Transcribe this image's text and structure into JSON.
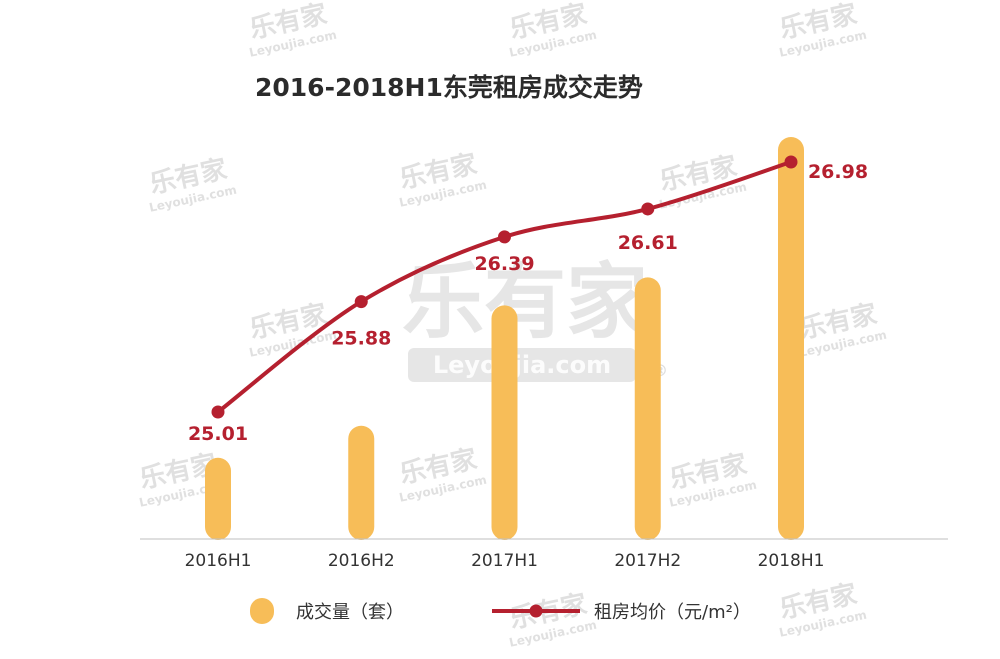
{
  "chart_data": {
    "type": "bar",
    "title": "2016-2018H1东莞租房成交走势",
    "categories": [
      "2016H1",
      "2016H2",
      "2017H1",
      "2017H2",
      "2018H1"
    ],
    "series": [
      {
        "name": "成交量（套）",
        "type": "bar",
        "values": [
          80,
          112,
          232,
          260,
          400
        ]
      },
      {
        "name": "租房均价（元/m²）",
        "type": "line",
        "values": [
          25.01,
          25.88,
          26.39,
          26.61,
          26.98
        ]
      }
    ],
    "line_labels": [
      "25.01",
      "25.88",
      "26.39",
      "26.61",
      "26.98"
    ],
    "colors": {
      "bar": "#f7bd58",
      "line": "#b5202f",
      "axis": "#bfbfbf"
    },
    "legend_position": "bottom",
    "grid": false
  },
  "watermark": {
    "brand": "乐有家",
    "domain": "Leyoujia.com",
    "mark": "®"
  }
}
